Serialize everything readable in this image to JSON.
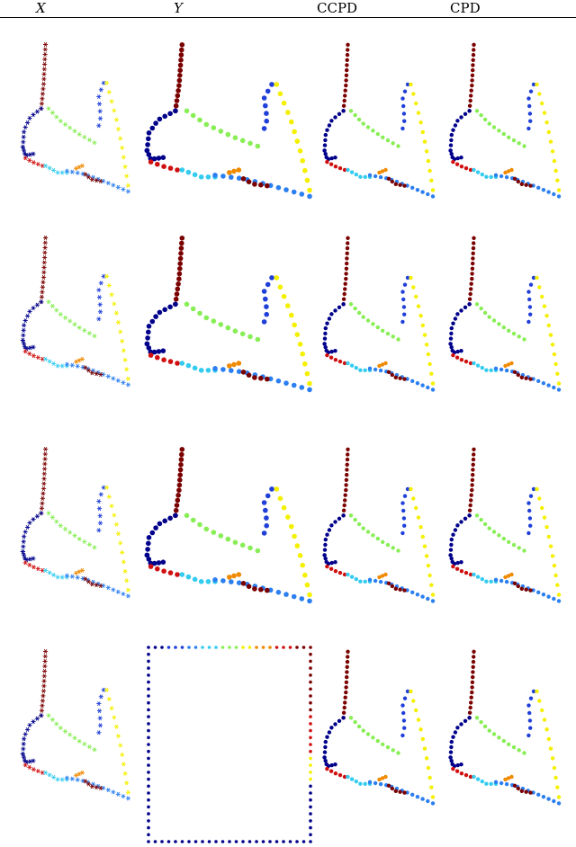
{
  "table": {
    "columns": [
      {
        "key": "x",
        "label": "X",
        "italic": true
      },
      {
        "key": "y",
        "label": "Y",
        "italic": true
      },
      {
        "key": "ccpd",
        "label": "CCPD",
        "italic": false
      },
      {
        "key": "cpd",
        "label": "CPD",
        "italic": false
      }
    ],
    "rows": 4
  },
  "colors": {
    "dark_blue": "#00008b",
    "blue": "#1f3fd8",
    "light_blue": "#2b7ff0",
    "cyan": "#33ccf0",
    "green": "#88ee55",
    "yellow": "#f4f000",
    "orange": "#f08a00",
    "red": "#d01010",
    "dark_red": "#7a0000",
    "brown": "#8b4c4c"
  }
}
